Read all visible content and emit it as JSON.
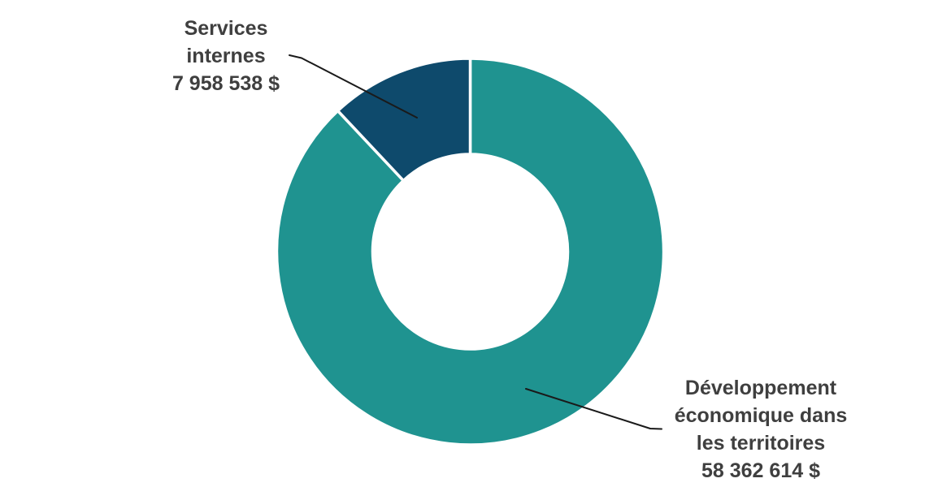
{
  "chart_data": {
    "type": "pie",
    "subtype": "donut",
    "title": "",
    "legend": "none",
    "labels": "outside-with-leader-lines",
    "start_angle_deg": 0,
    "direction": "clockwise",
    "total": 66321152,
    "categories": [
      "Développement économique dans les territoires",
      "Services internes"
    ],
    "values": [
      58362614,
      7958538
    ],
    "segments": [
      {
        "id": "developpement",
        "label": "Développement économique dans les territoires",
        "value": 58362614,
        "value_label": "58 362 614 $",
        "percent": 88.0,
        "color": "#1F9390"
      },
      {
        "id": "services",
        "label": "Services internes",
        "value": 7958538,
        "value_label": "7 958 538 $",
        "percent": 12.0,
        "color": "#0E4A6C"
      }
    ]
  },
  "annotations": {
    "services": {
      "lines": [
        "Services",
        "internes",
        "7 958 538 $"
      ]
    },
    "developpement": {
      "lines": [
        "Développement",
        "économique dans",
        "les territoires",
        "58 362 614 $"
      ]
    }
  },
  "colors": {
    "background": "#FFFFFF",
    "label_text": "#3F3F3F",
    "leader_line": "#1A1A1A",
    "slice_border": "#FFFFFF"
  }
}
